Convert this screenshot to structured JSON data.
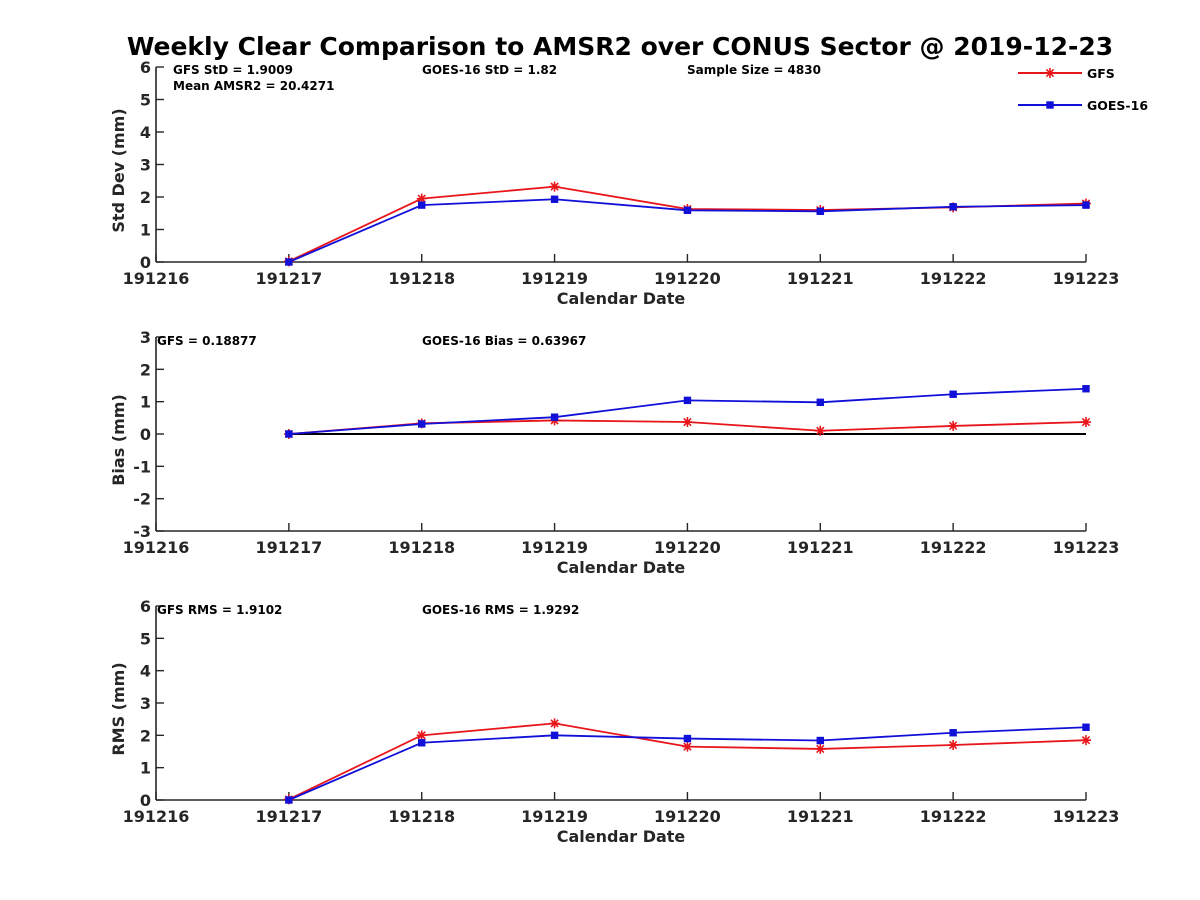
{
  "title": "Weekly Clear Comparison to AMSR2 over CONUS Sector @ 2019-12-23",
  "legend": [
    {
      "name": "GFS",
      "color": "#e8151b",
      "marker": "asterisk"
    },
    {
      "name": "GOES-16",
      "color": "#1010d8",
      "marker": "square"
    }
  ],
  "chart_data": [
    {
      "type": "line",
      "xlabel": "Calendar Date",
      "ylabel": "Std Dev (mm)",
      "x_ticks": [
        "191216",
        "191217",
        "191218",
        "191219",
        "191220",
        "191221",
        "191222",
        "191223"
      ],
      "y_ticks": [
        "0",
        "1",
        "2",
        "3",
        "4",
        "5",
        "6"
      ],
      "ylim": [
        0,
        6
      ],
      "zero_line": false,
      "annotations": [
        {
          "text": "GFS StD = 1.9009"
        },
        {
          "text": "Mean AMSR2 = 20.4271"
        },
        {
          "text": "GOES-16 StD = 1.82"
        },
        {
          "text": "Sample Size = 4830"
        }
      ],
      "series": [
        {
          "name": "GFS",
          "x": [
            "191217",
            "191218",
            "191219",
            "191220",
            "191221",
            "191222",
            "191223"
          ],
          "values": [
            0.02,
            1.95,
            2.32,
            1.63,
            1.6,
            1.68,
            1.8
          ]
        },
        {
          "name": "GOES-16",
          "x": [
            "191217",
            "191218",
            "191219",
            "191220",
            "191221",
            "191222",
            "191223"
          ],
          "values": [
            0.0,
            1.75,
            1.93,
            1.59,
            1.56,
            1.7,
            1.75
          ]
        }
      ]
    },
    {
      "type": "line",
      "xlabel": "Calendar Date",
      "ylabel": "Bias (mm)",
      "x_ticks": [
        "191216",
        "191217",
        "191218",
        "191219",
        "191220",
        "191221",
        "191222",
        "191223"
      ],
      "y_ticks": [
        "-3",
        "-2",
        "-1",
        "0",
        "1",
        "2",
        "3"
      ],
      "ylim": [
        -3,
        3
      ],
      "zero_line": true,
      "annotations": [
        {
          "text": "GFS = 0.18877"
        },
        {
          "text": "GOES-16 Bias  = 0.63967"
        }
      ],
      "series": [
        {
          "name": "GFS",
          "x": [
            "191217",
            "191218",
            "191219",
            "191220",
            "191221",
            "191222",
            "191223"
          ],
          "values": [
            0.0,
            0.33,
            0.42,
            0.37,
            0.1,
            0.25,
            0.37
          ]
        },
        {
          "name": "GOES-16",
          "x": [
            "191217",
            "191218",
            "191219",
            "191220",
            "191221",
            "191222",
            "191223"
          ],
          "values": [
            0.0,
            0.31,
            0.52,
            1.04,
            0.98,
            1.23,
            1.4
          ]
        }
      ]
    },
    {
      "type": "line",
      "xlabel": "Calendar Date",
      "ylabel": "RMS (mm)",
      "x_ticks": [
        "191216",
        "191217",
        "191218",
        "191219",
        "191220",
        "191221",
        "191222",
        "191223"
      ],
      "y_ticks": [
        "0",
        "1",
        "2",
        "3",
        "4",
        "5",
        "6"
      ],
      "ylim": [
        0,
        6
      ],
      "zero_line": false,
      "annotations": [
        {
          "text": "GFS RMS = 1.9102"
        },
        {
          "text": "GOES-16 RMS = 1.9292"
        }
      ],
      "series": [
        {
          "name": "GFS",
          "x": [
            "191217",
            "191218",
            "191219",
            "191220",
            "191221",
            "191222",
            "191223"
          ],
          "values": [
            0.02,
            2.0,
            2.37,
            1.65,
            1.58,
            1.7,
            1.85
          ]
        },
        {
          "name": "GOES-16",
          "x": [
            "191217",
            "191218",
            "191219",
            "191220",
            "191221",
            "191222",
            "191223"
          ],
          "values": [
            0.0,
            1.77,
            2.0,
            1.9,
            1.84,
            2.08,
            2.25
          ]
        }
      ]
    }
  ]
}
